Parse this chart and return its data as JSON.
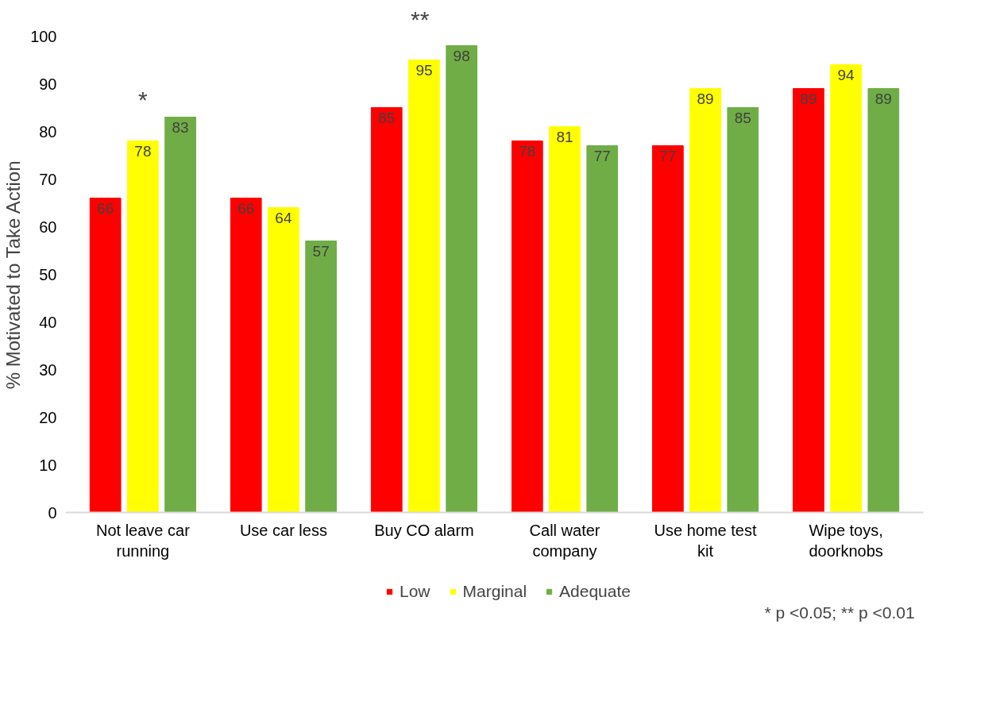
{
  "chart_data": {
    "type": "bar",
    "ylabel": "% Motivated to Take Action",
    "categories": [
      "Not leave car running",
      "Use car less",
      "Buy CO alarm",
      "Call water company",
      "Use home test kit",
      "Wipe toys, doorknobs"
    ],
    "series": [
      {
        "name": "Low",
        "color": "#ff0000",
        "values": [
          66,
          66,
          85,
          78,
          77,
          89
        ]
      },
      {
        "name": "Marginal",
        "color": "#ffff00",
        "values": [
          78,
          64,
          95,
          81,
          89,
          94
        ]
      },
      {
        "name": "Adequate",
        "color": "#70ad47",
        "values": [
          83,
          57,
          98,
          77,
          85,
          89
        ]
      }
    ],
    "ylim": [
      0,
      100
    ],
    "yticks": [
      0,
      10,
      20,
      30,
      40,
      50,
      60,
      70,
      80,
      90,
      100
    ],
    "data_labels": true,
    "grid": false,
    "legend": "bottom",
    "annotations": [
      "*",
      "**",
      "* p <0.05; ** p <0.01"
    ]
  }
}
